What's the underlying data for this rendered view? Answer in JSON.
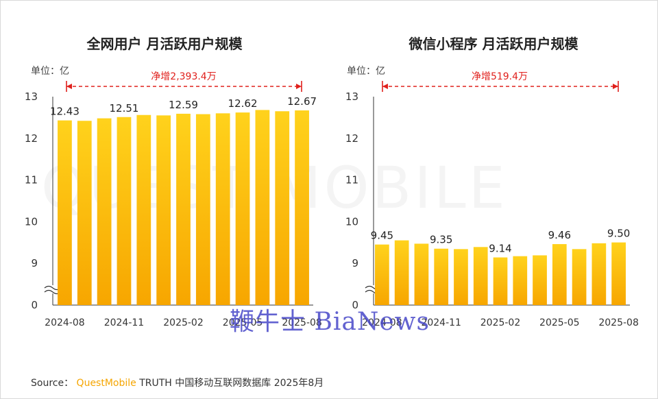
{
  "chart_data": [
    {
      "type": "bar",
      "title": "全网用户 月活跃用户规模",
      "unit": "单位：亿",
      "annotation": "净增2,393.4万",
      "ylim": [
        0,
        13
      ],
      "yticks": [
        "0",
        "9",
        "10",
        "11",
        "12",
        "13"
      ],
      "axis_break": true,
      "x_tick_labels": [
        "2024-08",
        "2024-11",
        "2025-02",
        "2025-05",
        "2025-08"
      ],
      "categories": [
        "2024-08",
        "2024-09",
        "2024-10",
        "2024-11",
        "2024-12",
        "2025-01",
        "2025-02",
        "2025-03",
        "2025-04",
        "2025-05",
        "2025-06",
        "2025-07",
        "2025-08"
      ],
      "values": [
        12.43,
        12.42,
        12.48,
        12.51,
        12.56,
        12.55,
        12.59,
        12.58,
        12.6,
        12.62,
        12.68,
        12.65,
        12.67
      ],
      "data_labels": [
        "12.43",
        "",
        "",
        "12.51",
        "",
        "",
        "12.59",
        "",
        "",
        "12.62",
        "",
        "",
        "12.67"
      ]
    },
    {
      "type": "bar",
      "title": "微信小程序 月活跃用户规模",
      "unit": "单位：亿",
      "annotation": "净增519.4万",
      "ylim": [
        0,
        13
      ],
      "yticks": [
        "0",
        "9",
        "10",
        "11",
        "12",
        "13"
      ],
      "axis_break": true,
      "x_tick_labels": [
        "2024-08",
        "2024-11",
        "2025-02",
        "2025-05",
        "2025-08"
      ],
      "categories": [
        "2024-08",
        "2024-09",
        "2024-10",
        "2024-11",
        "2024-12",
        "2025-01",
        "2025-02",
        "2025-03",
        "2025-04",
        "2025-05",
        "2025-06",
        "2025-07",
        "2025-08"
      ],
      "values": [
        9.45,
        9.55,
        9.47,
        9.35,
        9.34,
        9.39,
        9.14,
        9.17,
        9.19,
        9.46,
        9.34,
        9.48,
        9.5
      ],
      "data_labels": [
        "9.45",
        "",
        "",
        "9.35",
        "",
        "",
        "9.14",
        "",
        "",
        "9.46",
        "",
        "",
        "9.50"
      ]
    }
  ],
  "watermark": "QUEST MOBILE",
  "overlay_watermark": "鞭牛士 BiaNews",
  "source": {
    "prefix": "Source：",
    "brand": "QuestMobile",
    "suffix": " TRUTH 中国移动互联网数据库 2025年8月"
  },
  "colors": {
    "bar_top": "#ffd21c",
    "bar_bottom": "#f7a600",
    "annotation": "#e0201c",
    "axis": "#333333"
  }
}
